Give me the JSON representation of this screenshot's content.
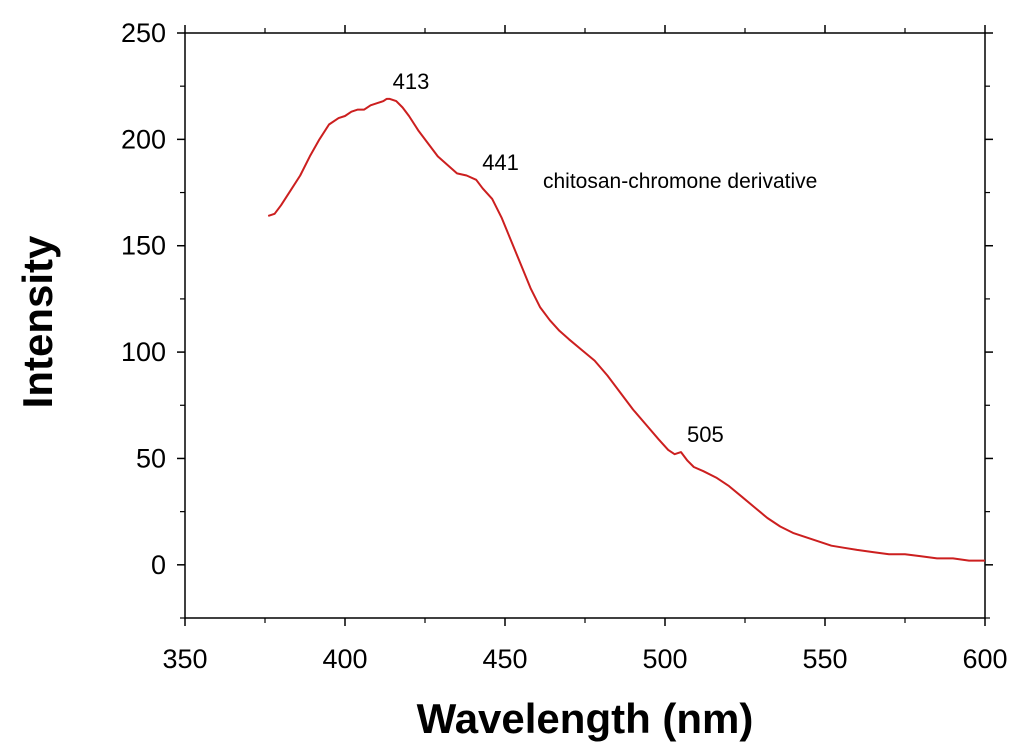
{
  "chart_data": {
    "type": "line",
    "title": "",
    "xlabel": "Wavelength (nm)",
    "ylabel": "Intensity",
    "xlim": [
      350,
      600
    ],
    "ylim": [
      -25,
      250
    ],
    "xticks": [
      350,
      400,
      450,
      500,
      550,
      600
    ],
    "yticks": [
      0,
      50,
      100,
      150,
      200,
      250
    ],
    "grid": false,
    "line_color": "#cc1f1f",
    "series": [
      {
        "name": "chitosan-chromone derivative",
        "x": [
          376,
          378,
          380,
          383,
          386,
          389,
          392,
          395,
          398,
          400,
          402,
          404,
          406,
          408,
          410,
          412,
          413,
          414,
          416,
          418,
          420,
          423,
          426,
          429,
          432,
          435,
          438,
          441,
          443,
          446,
          449,
          452,
          455,
          458,
          461,
          464,
          467,
          470,
          474,
          478,
          482,
          486,
          490,
          494,
          498,
          501,
          503,
          505,
          507,
          509,
          512,
          516,
          520,
          524,
          528,
          532,
          536,
          540,
          544,
          548,
          552,
          556,
          560,
          565,
          570,
          575,
          580,
          585,
          590,
          595,
          600
        ],
        "y": [
          164,
          165,
          169,
          176,
          183,
          192,
          200,
          207,
          210,
          211,
          213,
          214,
          214,
          216,
          217,
          218,
          219,
          219,
          218,
          215,
          211,
          204,
          198,
          192,
          188,
          184,
          183,
          181,
          177,
          172,
          163,
          152,
          141,
          130,
          121,
          115,
          110,
          106,
          101,
          96,
          89,
          81,
          73,
          66,
          59,
          54,
          52,
          53,
          49,
          46,
          44,
          41,
          37,
          32,
          27,
          22,
          18,
          15,
          13,
          11,
          9,
          8,
          7,
          6,
          5,
          5,
          4,
          3,
          3,
          2,
          2
        ]
      }
    ],
    "annotations": [
      {
        "text": "413",
        "x": 413,
        "y": 219
      },
      {
        "text": "441",
        "x": 441,
        "y": 181
      },
      {
        "text": "505",
        "x": 505,
        "y": 53
      }
    ],
    "legend": "top-right"
  }
}
